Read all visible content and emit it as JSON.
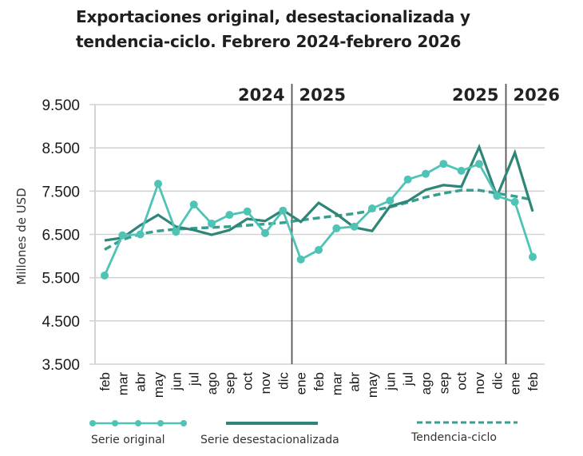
{
  "title_lines": [
    "Exportaciones original, desestacionalizada y",
    "tendencia-ciclo. Febrero 2024-febrero 2026"
  ],
  "chart_data": {
    "type": "line",
    "title": "Exportaciones original, desestacionalizada y tendencia-ciclo. Febrero 2024-febrero 2026",
    "xlabel": "",
    "ylabel": "Millones de USD",
    "ylim": [
      3500,
      9500
    ],
    "yticks": [
      9500,
      8500,
      7500,
      6500,
      5500,
      4500,
      3500
    ],
    "ytick_labels": [
      "9.500",
      "8.500",
      "7.500",
      "6.500",
      "5.500",
      "4.500",
      "3.500"
    ],
    "grid": true,
    "legend_position": "bottom",
    "categories": [
      "feb",
      "mar",
      "abr",
      "may",
      "jun",
      "jul",
      "ago",
      "sep",
      "oct",
      "nov",
      "dic",
      "ene",
      "feb",
      "mar",
      "abr",
      "may",
      "jun",
      "jul",
      "ago",
      "sep",
      "oct",
      "nov",
      "dic",
      "ene",
      "feb"
    ],
    "year_separators": [
      {
        "after_index": 10,
        "left_label": "2024",
        "right_label": "2025"
      },
      {
        "after_index": 22,
        "left_label": "2025",
        "right_label": "2026"
      }
    ],
    "series": [
      {
        "name": "Serie original",
        "style": "line-markers",
        "color": "#4ec3b6",
        "values": [
          5550,
          6480,
          6500,
          7670,
          6560,
          7190,
          6750,
          6950,
          7030,
          6530,
          7050,
          5920,
          6140,
          6640,
          6680,
          7100,
          7280,
          7770,
          7900,
          8130,
          7970,
          8130,
          7390,
          7250,
          5980
        ]
      },
      {
        "name": "Serie desestacionalizada",
        "style": "solid",
        "color": "#2e8578",
        "values": [
          6360,
          6420,
          6710,
          6950,
          6680,
          6600,
          6490,
          6600,
          6860,
          6810,
          7060,
          6790,
          7230,
          6970,
          6660,
          6580,
          7150,
          7270,
          7530,
          7640,
          7600,
          8520,
          7380,
          8390,
          7030
        ]
      },
      {
        "name": "Tendencia-ciclo",
        "style": "dashed",
        "color": "#3a9e8f",
        "values": [
          6150,
          6380,
          6510,
          6580,
          6620,
          6640,
          6660,
          6680,
          6710,
          6740,
          6770,
          6830,
          6880,
          6930,
          6980,
          7050,
          7130,
          7240,
          7360,
          7450,
          7520,
          7520,
          7450,
          7380,
          7300
        ]
      }
    ]
  },
  "legend": {
    "original": "Serie original",
    "desest": "Serie desestacionalizada",
    "trend": "Tendencia-ciclo"
  }
}
